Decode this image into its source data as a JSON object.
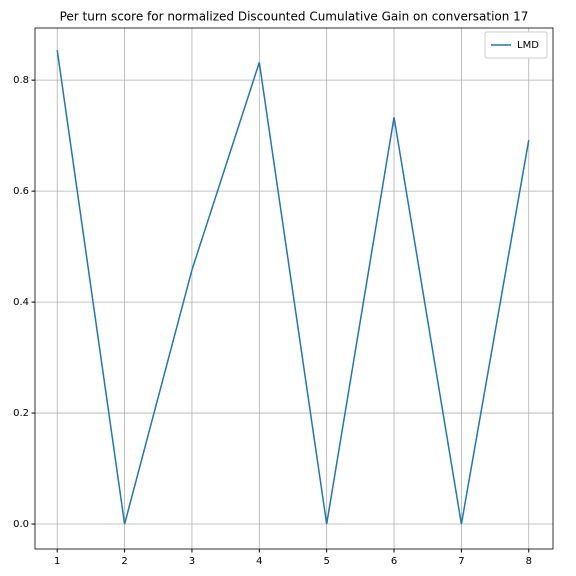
{
  "chart_data": {
    "type": "line",
    "title": "Per turn score for normalized Discounted Cumulative Gain on conversation 17",
    "x": [
      1,
      2,
      3,
      4,
      5,
      6,
      7,
      8
    ],
    "series": [
      {
        "name": "LMD",
        "color": "#1f77b4",
        "values": [
          0.854,
          0,
          0.458,
          0.832,
          0,
          0.733,
          0,
          0.692
        ]
      }
    ],
    "xlim": [
      0.67,
      8.36
    ],
    "xticks": [
      1,
      2,
      3,
      4,
      5,
      6,
      7,
      8
    ],
    "ylim": [
      -0.045,
      0.894
    ],
    "yticks": [
      {
        "value": 0,
        "label": "0.0"
      },
      0.2,
      0.4,
      0.6,
      0.8
    ],
    "grid": true,
    "legend": "upper-right"
  }
}
